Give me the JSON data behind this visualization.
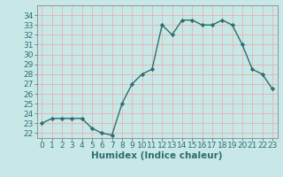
{
  "x": [
    0,
    1,
    2,
    3,
    4,
    5,
    6,
    7,
    8,
    9,
    10,
    11,
    12,
    13,
    14,
    15,
    16,
    17,
    18,
    19,
    20,
    21,
    22,
    23
  ],
  "y": [
    23.0,
    23.5,
    23.5,
    23.5,
    23.5,
    22.5,
    22.0,
    21.8,
    25.0,
    27.0,
    28.0,
    28.5,
    33.0,
    32.0,
    33.5,
    33.5,
    33.0,
    33.0,
    33.5,
    33.0,
    31.0,
    28.5,
    28.0,
    26.5
  ],
  "xlabel": "Humidex (Indice chaleur)",
  "ylim": [
    21.5,
    35.0
  ],
  "xlim": [
    -0.5,
    23.5
  ],
  "yticks": [
    22,
    23,
    24,
    25,
    26,
    27,
    28,
    29,
    30,
    31,
    32,
    33,
    34
  ],
  "xticks": [
    0,
    1,
    2,
    3,
    4,
    5,
    6,
    7,
    8,
    9,
    10,
    11,
    12,
    13,
    14,
    15,
    16,
    17,
    18,
    19,
    20,
    21,
    22,
    23
  ],
  "line_color": "#2d6e6e",
  "marker": "D",
  "marker_size": 2.2,
  "bg_color": "#c8e8e8",
  "plot_bg_color": "#c8e8e8",
  "grid_color": "#e8b0b0",
  "axes_color": "#888888",
  "tick_label_color": "#2d6e6e",
  "xlabel_fontsize": 7.5,
  "tick_fontsize": 6.5,
  "line_width": 1.0
}
